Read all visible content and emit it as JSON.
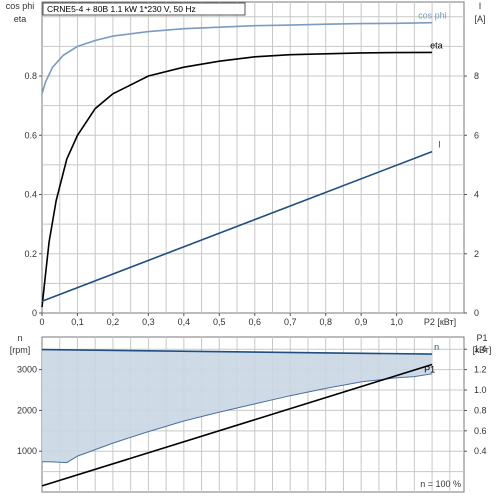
{
  "title": "CRNE5-4 + 80B   1.1 kW   1*230 V, 50 Hz",
  "colors": {
    "cosphi": "#7a9cc0",
    "eta": "#000000",
    "current": "#1e4f82",
    "speed": "#1e4f82",
    "p1": "#000000",
    "shade_fill": "#c9d6e3",
    "shade_edge": "#4a6fa0",
    "grid": "#c8c8c8",
    "frame": "#7a7a7a"
  },
  "chart_data": [
    {
      "type": "line",
      "panel": "top",
      "xlabel": "P2 [кВт]",
      "x_ticks": [
        "0",
        "0,1",
        "0,2",
        "0,3",
        "0,4",
        "0,5",
        "0,6",
        "0,7",
        "0,8",
        "0,9",
        "1,0"
      ],
      "xlim": [
        0,
        1.19
      ],
      "left_axis": {
        "label_top": "cos phi",
        "label_bottom": "eta",
        "ylim": [
          0,
          1.05
        ],
        "ticks": [
          "0",
          "0.2",
          "0.4",
          "0.6",
          "0.8"
        ]
      },
      "right_axis": {
        "label_top": "I",
        "label_bottom": "[A]",
        "ylim": [
          0,
          10.5
        ],
        "ticks": [
          "0",
          "2",
          "4",
          "6",
          "8"
        ]
      },
      "grid": true,
      "series": [
        {
          "name": "cos phi",
          "axis": "left",
          "color_key": "cosphi",
          "x": [
            0,
            0.01,
            0.03,
            0.06,
            0.1,
            0.15,
            0.2,
            0.3,
            0.4,
            0.5,
            0.6,
            0.7,
            0.8,
            0.9,
            1.0,
            1.1
          ],
          "y": [
            0.74,
            0.78,
            0.83,
            0.87,
            0.9,
            0.92,
            0.935,
            0.95,
            0.96,
            0.965,
            0.97,
            0.972,
            0.975,
            0.977,
            0.978,
            0.98
          ]
        },
        {
          "name": "eta",
          "axis": "left",
          "color_key": "eta",
          "x": [
            0,
            0.01,
            0.02,
            0.04,
            0.07,
            0.1,
            0.15,
            0.2,
            0.3,
            0.4,
            0.5,
            0.6,
            0.7,
            0.8,
            0.9,
            1.0,
            1.1
          ],
          "y": [
            0.02,
            0.13,
            0.24,
            0.38,
            0.52,
            0.6,
            0.69,
            0.74,
            0.8,
            0.83,
            0.85,
            0.865,
            0.872,
            0.875,
            0.878,
            0.879,
            0.88
          ]
        },
        {
          "name": "I",
          "axis": "right",
          "color_key": "current",
          "x": [
            0,
            1.1
          ],
          "y": [
            0.4,
            5.45
          ]
        }
      ]
    },
    {
      "type": "line",
      "panel": "bottom",
      "xlim": [
        0,
        1.19
      ],
      "left_axis": {
        "label_top": "n",
        "label_bottom": "[rpm]",
        "ylim": [
          0,
          3800
        ],
        "ticks": [
          "1000",
          "2000",
          "3000"
        ]
      },
      "right_axis": {
        "label_top": "P1",
        "label_bottom": "[кВт]",
        "ylim": [
          0,
          1.52
        ],
        "ticks": [
          "0.4",
          "0.6",
          "0.8",
          "1.0",
          "1.2",
          "1.4"
        ]
      },
      "grid": true,
      "annotation": "n = 100 %",
      "series": [
        {
          "name": "n",
          "axis": "left",
          "color_key": "speed",
          "x": [
            0,
            1.1
          ],
          "y": [
            3490,
            3380
          ]
        },
        {
          "name": "P1",
          "axis": "right",
          "color_key": "p1",
          "x": [
            0,
            1.1
          ],
          "y": [
            0.06,
            1.25
          ]
        }
      ],
      "shaded_region": {
        "upper_series": "n",
        "lower_edge": {
          "axis": "left",
          "x": [
            0,
            0.02,
            0.05,
            0.07,
            0.1,
            0.2,
            0.3,
            0.4,
            0.5,
            0.6,
            0.7,
            0.8,
            0.9,
            1.0,
            1.05,
            1.1
          ],
          "y": [
            740,
            740,
            730,
            720,
            880,
            1200,
            1480,
            1740,
            1960,
            2160,
            2360,
            2540,
            2700,
            2800,
            2830,
            2900
          ]
        }
      }
    }
  ]
}
